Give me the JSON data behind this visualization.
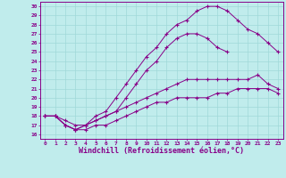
{
  "xlabel": "Windchill (Refroidissement éolien,°C)",
  "bg_color": "#c0ecec",
  "line_color": "#880088",
  "xlim": [
    -0.5,
    23.5
  ],
  "ylim": [
    15.5,
    30.5
  ],
  "xticks": [
    0,
    1,
    2,
    3,
    4,
    5,
    6,
    7,
    8,
    9,
    10,
    11,
    12,
    13,
    14,
    15,
    16,
    17,
    18,
    19,
    20,
    21,
    22,
    23
  ],
  "yticks": [
    16,
    17,
    18,
    19,
    20,
    21,
    22,
    23,
    24,
    25,
    26,
    27,
    28,
    29,
    30
  ],
  "line1_x": [
    0,
    1,
    2,
    3,
    4,
    5,
    6,
    7,
    8,
    9,
    10,
    11,
    12,
    13,
    14,
    15,
    16,
    17,
    18,
    19,
    20,
    21,
    22,
    23
  ],
  "line1_y": [
    18,
    18,
    17,
    16.5,
    17,
    18,
    18.5,
    20,
    21.5,
    23,
    24.5,
    25.5,
    27,
    28,
    28.5,
    29.5,
    30,
    30,
    29.5,
    28.5,
    27.5,
    27,
    26,
    25
  ],
  "line2_x": [
    0,
    1,
    2,
    3,
    4,
    5,
    6,
    7,
    8,
    9,
    10,
    11,
    12,
    13,
    14,
    15,
    16,
    17,
    18
  ],
  "line2_y": [
    18,
    18,
    17.5,
    17,
    17,
    17.5,
    18,
    18.5,
    20,
    21.5,
    23,
    24,
    25.5,
    26.5,
    27,
    27,
    26.5,
    25.5,
    25
  ],
  "line3_x": [
    0,
    1,
    2,
    3,
    4,
    5,
    6,
    7,
    8,
    9,
    10,
    11,
    12,
    13,
    14,
    15,
    16,
    17,
    18,
    19,
    20,
    21,
    22,
    23
  ],
  "line3_y": [
    18,
    18,
    17,
    16.5,
    17,
    17.5,
    18,
    18.5,
    19,
    19.5,
    20,
    20.5,
    21,
    21.5,
    22,
    22,
    22,
    22,
    22,
    22,
    22,
    22.5,
    21.5,
    21
  ],
  "line4_x": [
    0,
    1,
    2,
    3,
    4,
    5,
    6,
    7,
    8,
    9,
    10,
    11,
    12,
    13,
    14,
    15,
    16,
    17,
    18,
    19,
    20,
    21,
    22,
    23
  ],
  "line4_y": [
    18,
    18,
    17,
    16.5,
    16.5,
    17,
    17,
    17.5,
    18,
    18.5,
    19,
    19.5,
    19.5,
    20,
    20,
    20,
    20,
    20.5,
    20.5,
    21,
    21,
    21,
    21,
    20.5
  ],
  "grid_color": "#a0d8d8",
  "tick_fontsize": 4.5,
  "xlabel_fontsize": 6.0
}
